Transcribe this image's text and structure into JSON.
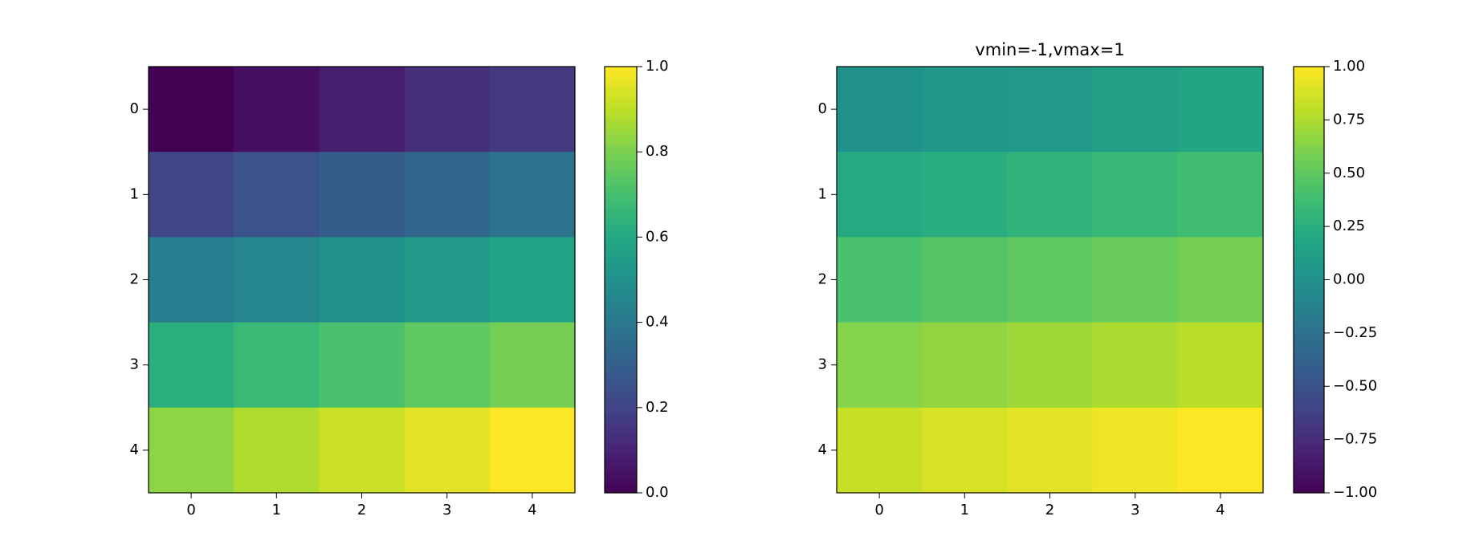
{
  "chart_data": [
    {
      "type": "heatmap",
      "colormap": "viridis",
      "values": [
        [
          0,
          0.04,
          0.08,
          0.13,
          0.17
        ],
        [
          0.21,
          0.25,
          0.29,
          0.33,
          0.38
        ],
        [
          0.42,
          0.46,
          0.5,
          0.54,
          0.58
        ],
        [
          0.63,
          0.67,
          0.71,
          0.75,
          0.79
        ],
        [
          0.83,
          0.88,
          0.92,
          0.96,
          1
        ]
      ],
      "xlim": [
        -0.5,
        4.5
      ],
      "ylim": [
        4.5,
        -0.5
      ],
      "xticks": [
        0,
        1,
        2,
        3,
        4
      ],
      "yticks": [
        0,
        1,
        2,
        3,
        4
      ],
      "clim": [
        0,
        1
      ],
      "cticks": [
        {
          "value": 0,
          "label": "0.0"
        },
        0.2,
        0.4,
        0.6,
        0.8,
        {
          "value": 1,
          "label": "1.0"
        }
      ]
    },
    {
      "type": "heatmap",
      "colormap": "viridis",
      "title": "vmin=-1,vmax=1",
      "values": [
        [
          0,
          0.04,
          0.08,
          0.13,
          0.17
        ],
        [
          0.21,
          0.25,
          0.29,
          0.33,
          0.38
        ],
        [
          0.42,
          0.46,
          0.5,
          0.54,
          0.58
        ],
        [
          0.63,
          0.67,
          0.71,
          0.75,
          0.79
        ],
        [
          0.83,
          0.88,
          0.92,
          0.96,
          1
        ]
      ],
      "xlim": [
        -0.5,
        4.5
      ],
      "ylim": [
        4.5,
        -0.5
      ],
      "xticks": [
        0,
        1,
        2,
        3,
        4
      ],
      "yticks": [
        0,
        1,
        2,
        3,
        4
      ],
      "clim": [
        -1,
        1
      ],
      "cticks": [
        {
          "value": -1,
          "label": "−1.00"
        },
        {
          "value": -0.75,
          "label": "−0.75"
        },
        {
          "value": -0.5,
          "label": "−0.50"
        },
        {
          "value": -0.25,
          "label": "−0.25"
        },
        {
          "value": 0,
          "label": "0.00"
        },
        0.25,
        {
          "value": 0.5,
          "label": "0.50"
        },
        0.75,
        {
          "value": 1,
          "label": "1.00"
        }
      ]
    }
  ]
}
